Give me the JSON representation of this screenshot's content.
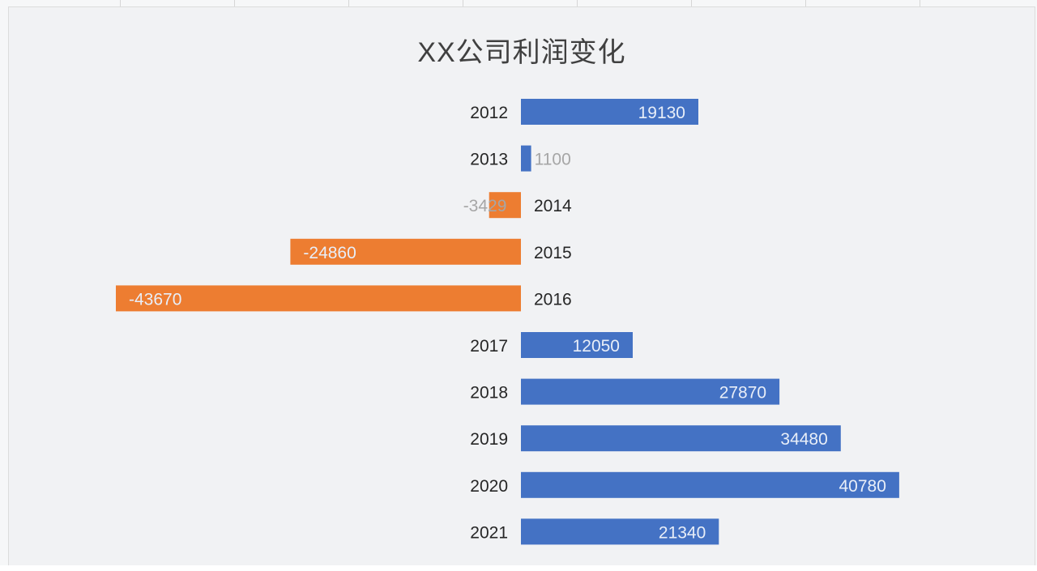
{
  "chart_data": {
    "type": "bar",
    "orientation": "horizontal",
    "title": "XX公司利润变化",
    "xlabel": "",
    "ylabel": "",
    "categories": [
      "2012",
      "2013",
      "2014",
      "2015",
      "2016",
      "2017",
      "2018",
      "2019",
      "2020",
      "2021"
    ],
    "values": [
      19130,
      1100,
      -3429,
      -24860,
      -43670,
      12050,
      27870,
      34480,
      40780,
      21340
    ],
    "xlim": [
      -44000,
      56000
    ],
    "grid": false,
    "legend": "none",
    "colors": {
      "positive": "#4472c4",
      "negative": "#ed7d31",
      "label_inside": "#e8eef8",
      "label_outside": "#a6a6a6",
      "category_label": "#262626"
    }
  }
}
